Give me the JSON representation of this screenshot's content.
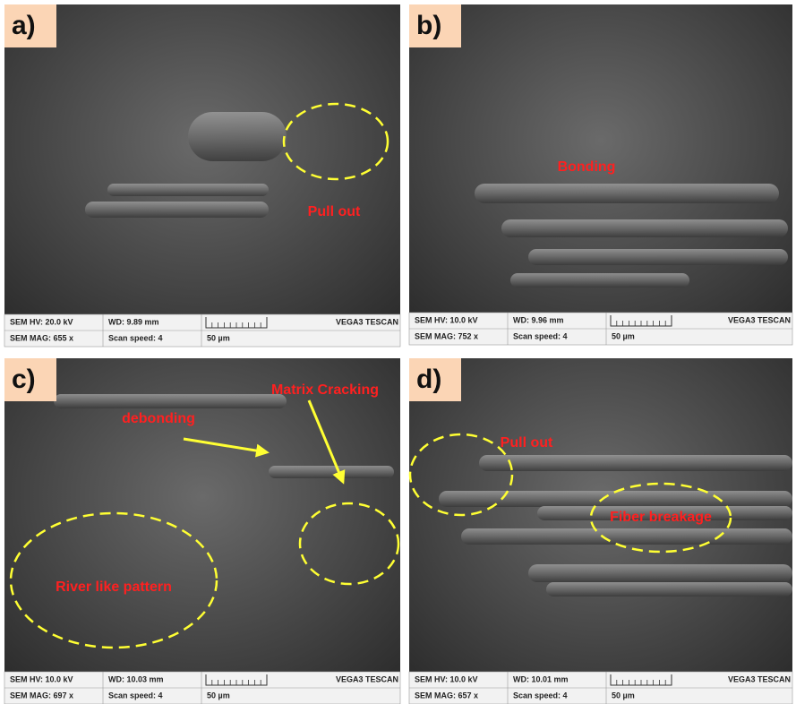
{
  "panels": [
    {
      "label": "a)",
      "annotations": [
        "Pull out"
      ],
      "info": {
        "hv": "SEM HV: 20.0 kV",
        "wd": "WD: 9.89 mm",
        "brand": "VEGA3 TESCAN",
        "mag": "SEM MAG: 655 x",
        "speed": "Scan speed: 4",
        "scale": "50 µm"
      }
    },
    {
      "label": "b)",
      "annotations": [
        "Bonding"
      ],
      "info": {
        "hv": "SEM HV: 10.0 kV",
        "wd": "WD: 9.96 mm",
        "brand": "VEGA3 TESCAN",
        "mag": "SEM MAG: 752 x",
        "speed": "Scan speed: 4",
        "scale": "50 µm"
      }
    },
    {
      "label": "c)",
      "annotations": [
        "debonding",
        "Matrix Cracking",
        "River like pattern"
      ],
      "info": {
        "hv": "SEM HV: 10.0 kV",
        "wd": "WD: 10.03 mm",
        "brand": "VEGA3 TESCAN",
        "mag": "SEM MAG: 697 x",
        "speed": "Scan speed: 4",
        "scale": "50 µm"
      }
    },
    {
      "label": "d)",
      "annotations": [
        "Pull out",
        "Fiber breakage"
      ],
      "info": {
        "hv": "SEM HV: 10.0 kV",
        "wd": "WD: 10.01 mm",
        "brand": "VEGA3 TESCAN",
        "mag": "SEM MAG: 657 x",
        "speed": "Scan speed: 4",
        "scale": "50 µm"
      }
    }
  ]
}
